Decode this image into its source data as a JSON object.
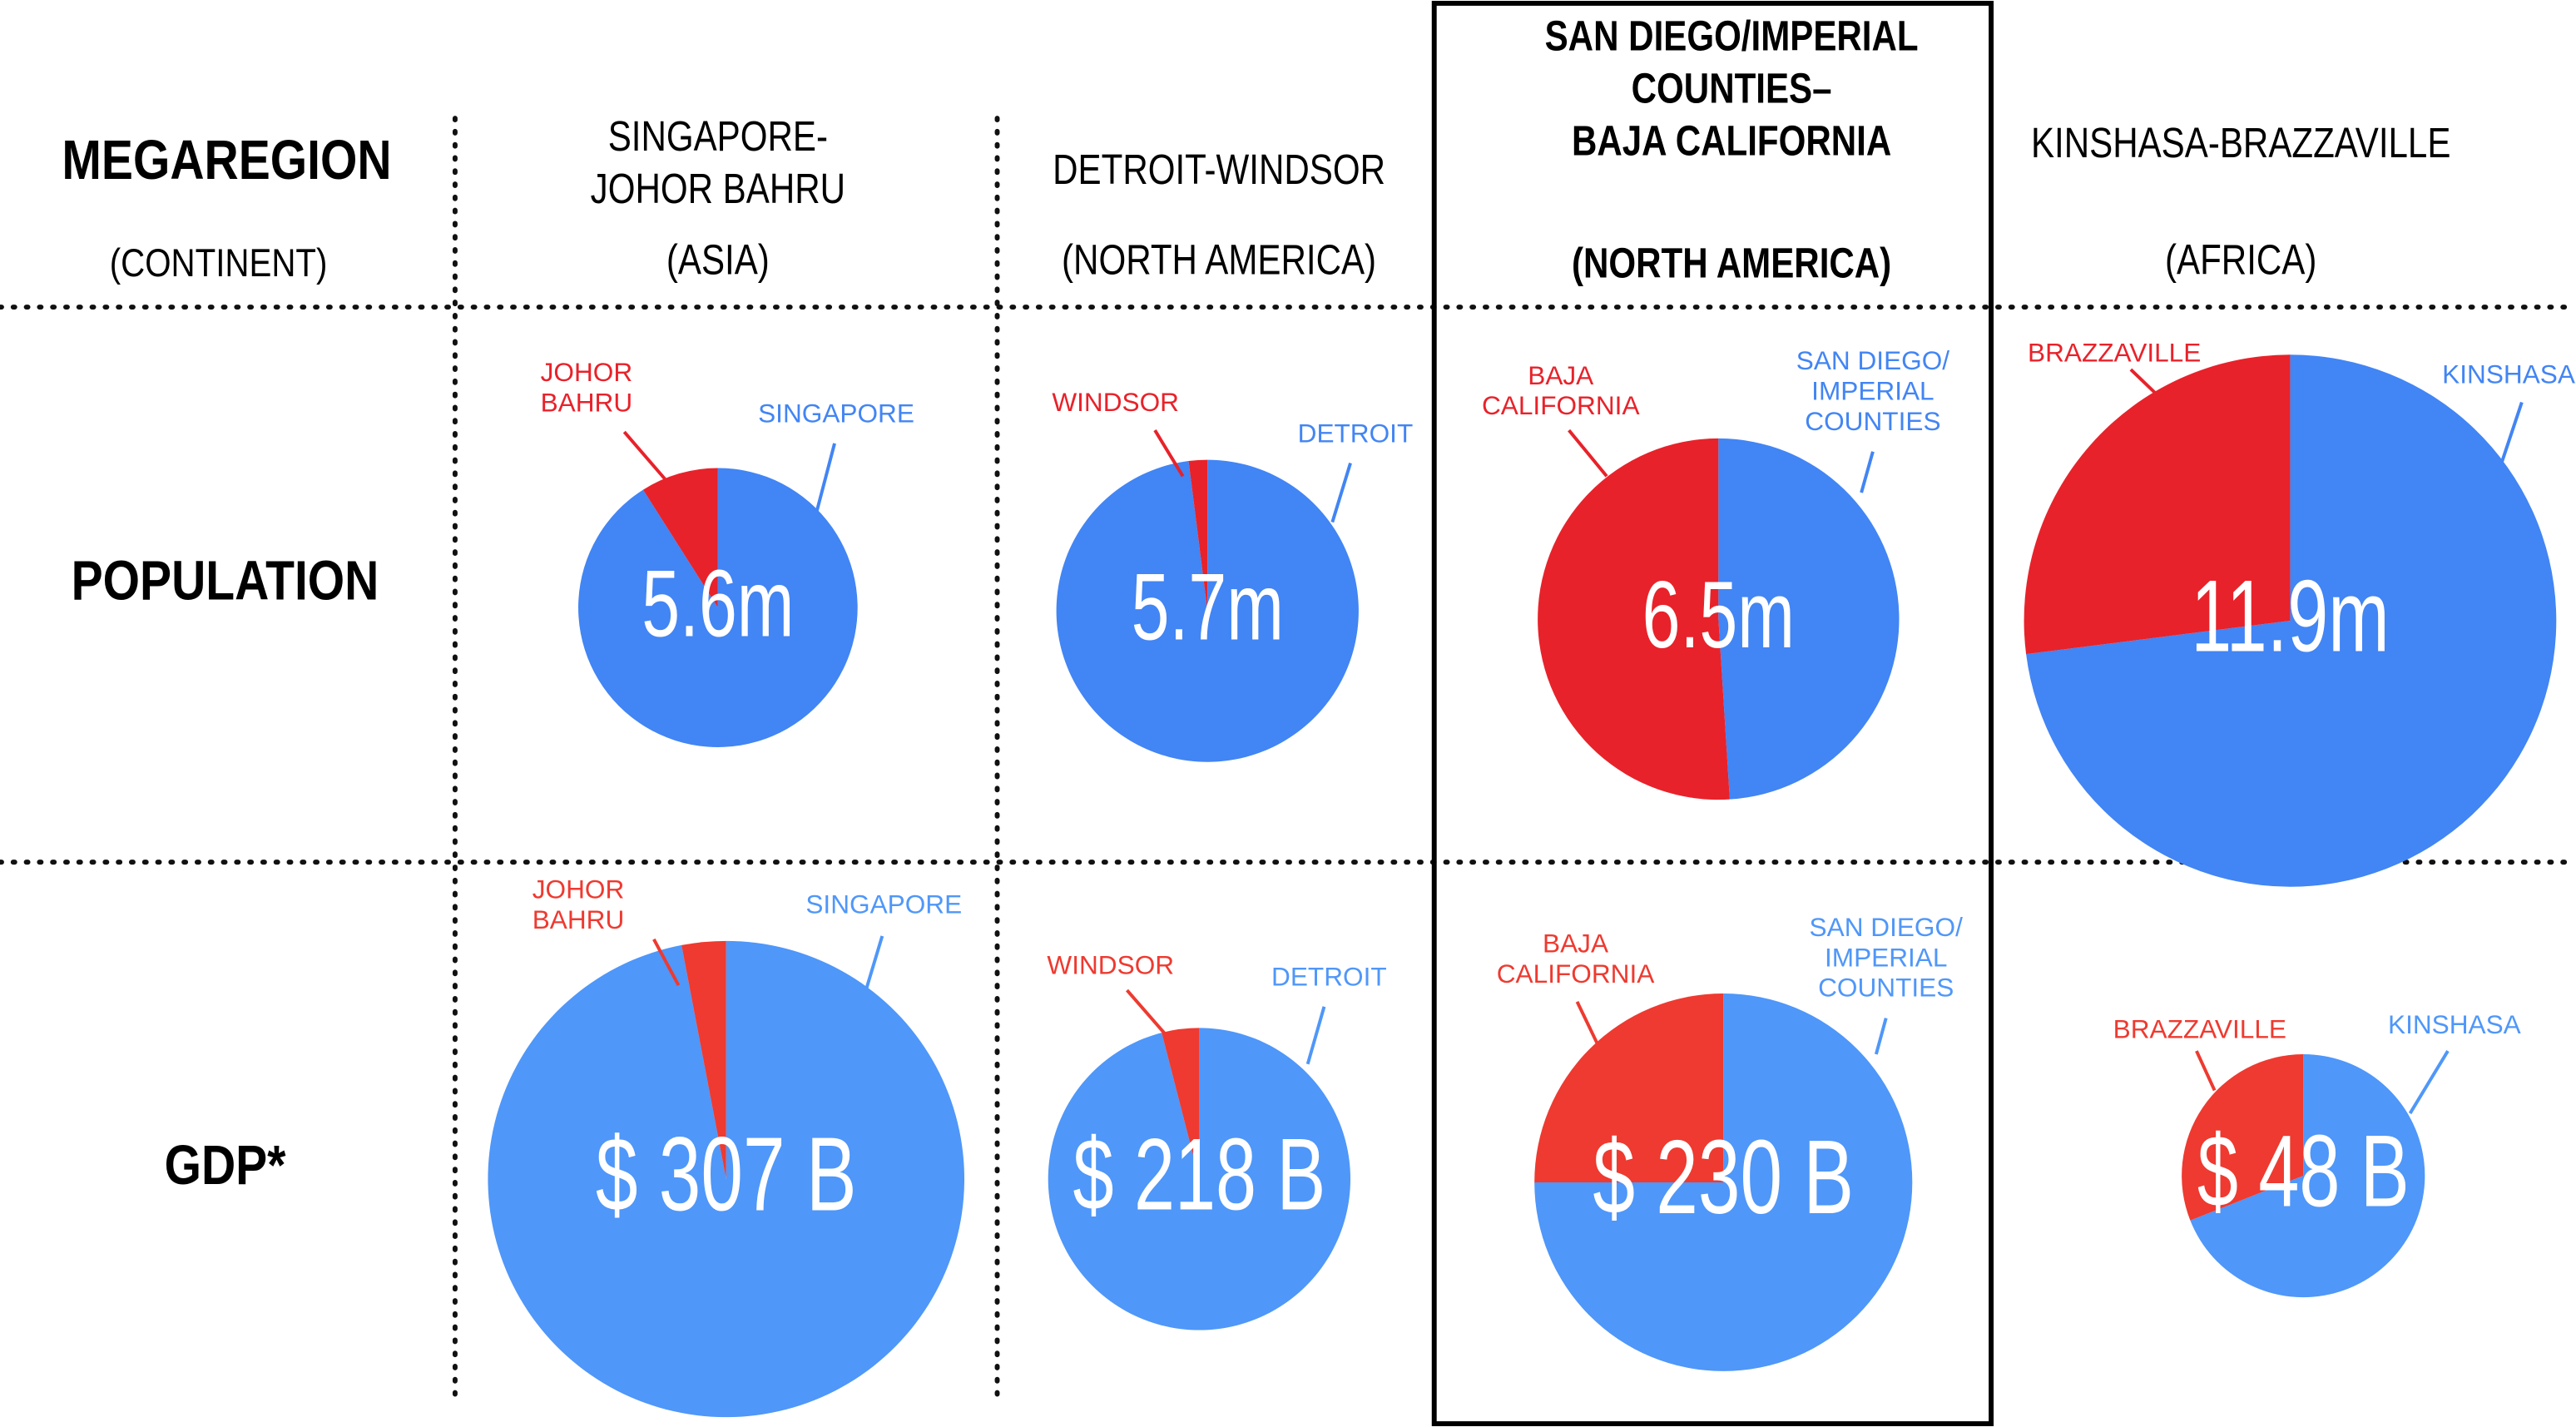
{
  "header": {
    "title": "MEGAREGION",
    "subtitle": "(CONTINENT)"
  },
  "rows": [
    "POPULATION",
    "GDP*"
  ],
  "columns": [
    {
      "name": "SINGAPORE-\nJOHOR BAHRU",
      "continent": "(ASIA)",
      "highlight": false
    },
    {
      "name": "DETROIT-WINDSOR",
      "continent": "(NORTH AMERICA)",
      "highlight": false
    },
    {
      "name": "SAN DIEGO/IMPERIAL\nCOUNTIES–\nBAJA CALIFORNIA",
      "continent": "(NORTH AMERICA)",
      "highlight": true
    },
    {
      "name": "KINSHASA-BRAZZAVILLE",
      "continent": "(AFRICA)",
      "highlight": false
    }
  ],
  "chart_data": [
    {
      "type": "pie",
      "categories": [
        "SINGAPORE",
        "JOHOR\nBAHRU"
      ],
      "values": [
        91,
        9
      ],
      "colors": [
        "#4285f4",
        "#e8222a"
      ],
      "center_label": "5.6m"
    },
    {
      "type": "pie",
      "categories": [
        "DETROIT",
        "WINDSOR"
      ],
      "values": [
        98,
        2
      ],
      "colors": [
        "#4285f4",
        "#e8222a"
      ],
      "center_label": "5.7m"
    },
    {
      "type": "pie",
      "categories": [
        "SAN DIEGO/\nIMPERIAL\nCOUNTIES",
        "BAJA\nCALIFORNIA"
      ],
      "values": [
        49,
        51
      ],
      "colors": [
        "#4285f4",
        "#e8222a"
      ],
      "center_label": "6.5m"
    },
    {
      "type": "pie",
      "categories": [
        "KINSHASA",
        "BRAZZAVILLE"
      ],
      "values": [
        73,
        27
      ],
      "colors": [
        "#4285f4",
        "#e8222a"
      ],
      "center_label": "11.9m"
    },
    {
      "type": "pie",
      "categories": [
        "SINGAPORE",
        "JOHOR\nBAHRU"
      ],
      "values": [
        97,
        3
      ],
      "colors": [
        "#4f97f9",
        "#ee3a30"
      ],
      "center_label": "$ 307 B"
    },
    {
      "type": "pie",
      "categories": [
        "DETROIT",
        "WINDSOR"
      ],
      "values": [
        96,
        4
      ],
      "colors": [
        "#4f97f9",
        "#ee3a30"
      ],
      "center_label": "$ 218 B"
    },
    {
      "type": "pie",
      "categories": [
        "SAN DIEGO/\nIMPERIAL\nCOUNTIES",
        "BAJA\nCALIFORNIA"
      ],
      "values": [
        75,
        25
      ],
      "colors": [
        "#4f97f9",
        "#ee3a30"
      ],
      "center_label": "$ 230 B"
    },
    {
      "type": "pie",
      "categories": [
        "KINSHASA",
        "BRAZZAVILLE"
      ],
      "values": [
        69,
        31
      ],
      "colors": [
        "#4f97f9",
        "#ee3a30"
      ],
      "center_label": "$ 48 B"
    }
  ]
}
